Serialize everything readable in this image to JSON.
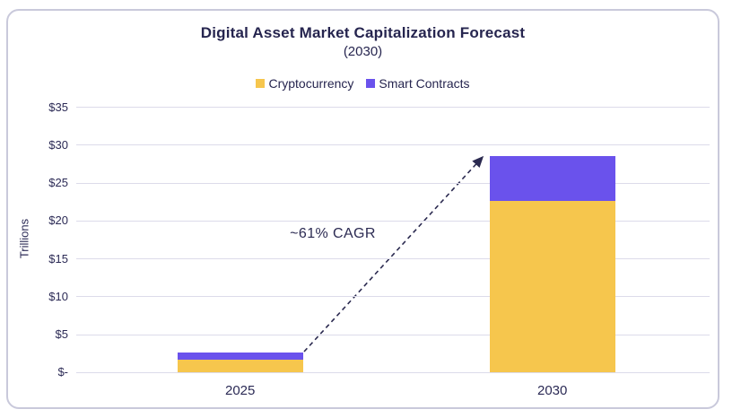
{
  "page": {
    "background": "#ffffff"
  },
  "card": {
    "background": "#ffffff",
    "border_color": "#c9c9db"
  },
  "chart_data": {
    "type": "bar",
    "stacked": true,
    "title": "Digital Asset Market Capitalization Forecast",
    "subtitle": "(2030)",
    "ylabel": "Trillions",
    "categories": [
      "2025",
      "2030"
    ],
    "series": [
      {
        "name": "Cryptocurrency",
        "color": "#f6c64d",
        "values": [
          1.7,
          22.7
        ]
      },
      {
        "name": "Smart Contracts",
        "color": "#6a52ec",
        "values": [
          0.9,
          5.9
        ]
      }
    ],
    "ylim": [
      0,
      35
    ],
    "ytick_values": [
      0,
      5,
      10,
      15,
      20,
      25,
      30,
      35
    ],
    "ytick_labels": [
      "$-",
      "$5",
      "$10",
      "$15",
      "$20",
      "$25",
      "$30",
      "$35"
    ],
    "grid": true,
    "legend_position": "top",
    "annotation": {
      "text": "~61% CAGR",
      "arrow_style": "dashed"
    },
    "annotation_color": "#2b2a52",
    "gridline_color": "#dcdbea",
    "text_color": "#26254f"
  }
}
